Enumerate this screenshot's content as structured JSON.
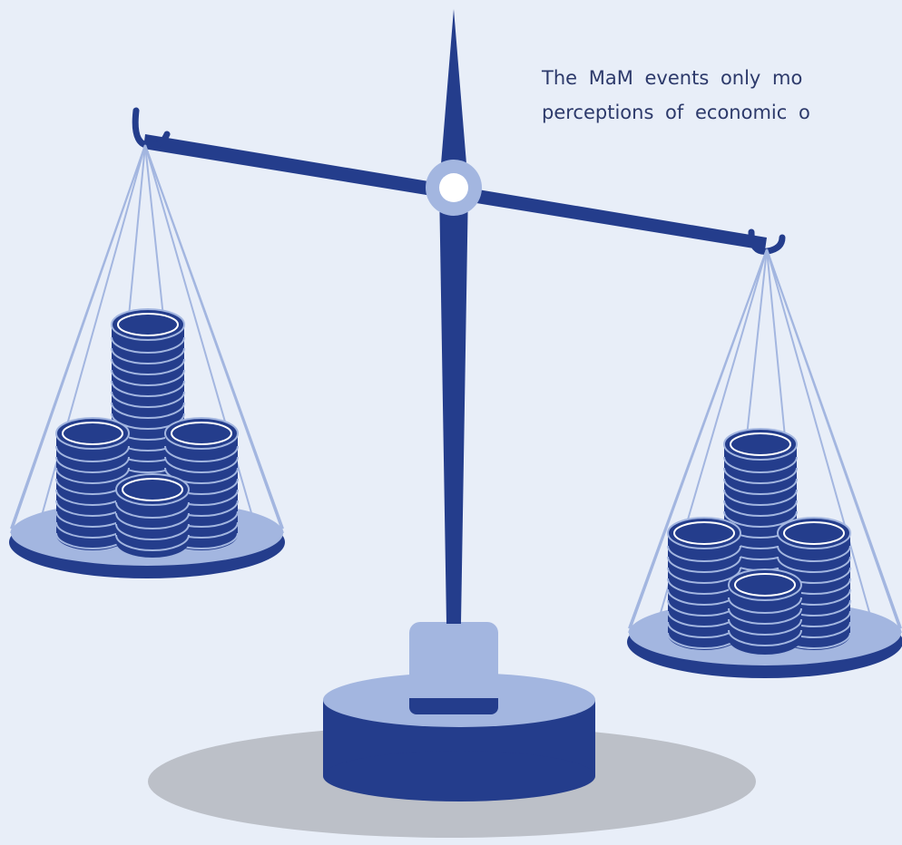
{
  "text": {
    "lines": [
      "The MaM events only mo",
      "perceptions of economic o"
    ]
  }
}
